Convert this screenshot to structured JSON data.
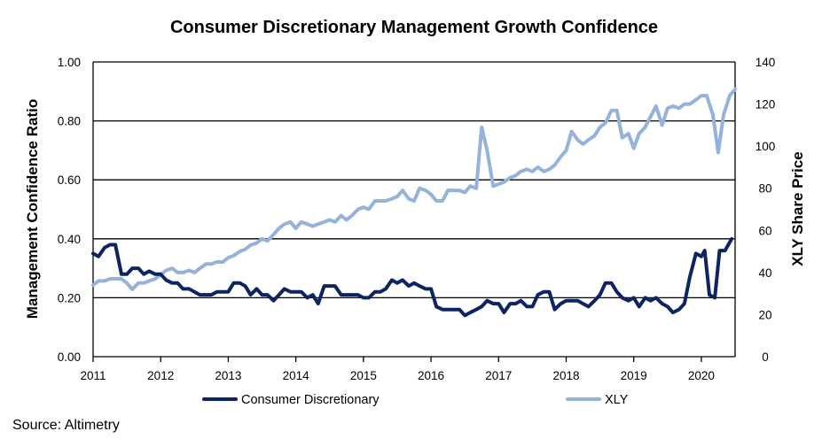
{
  "source": "Source: Altimetry",
  "chart_data": {
    "type": "line",
    "title": "Consumer Discretionary Management Growth Confidence",
    "ylabel": "Management Confidence Ratio",
    "y2label": "XLY Share Price",
    "xlim": [
      2011,
      2020.5
    ],
    "ylim": [
      0,
      1.0
    ],
    "y2lim": [
      0,
      140
    ],
    "x_ticks": [
      "2011",
      "2012",
      "2013",
      "2014",
      "2015",
      "2016",
      "2017",
      "2018",
      "2019",
      "2020"
    ],
    "y_ticks": [
      "0.00",
      "0.20",
      "0.40",
      "0.60",
      "0.80",
      "1.00"
    ],
    "y2_ticks": [
      "0",
      "20",
      "40",
      "60",
      "80",
      "100",
      "120",
      "140"
    ],
    "grid": "horizontal",
    "legend_position": "bottom",
    "series": [
      {
        "name": "Consumer Discretionary",
        "axis": "left",
        "color": "#0c2461",
        "points": [
          [
            2011.0,
            0.35
          ],
          [
            2011.08,
            0.34
          ],
          [
            2011.17,
            0.37
          ],
          [
            2011.25,
            0.38
          ],
          [
            2011.33,
            0.38
          ],
          [
            2011.42,
            0.28
          ],
          [
            2011.5,
            0.28
          ],
          [
            2011.58,
            0.3
          ],
          [
            2011.67,
            0.3
          ],
          [
            2011.75,
            0.28
          ],
          [
            2011.83,
            0.29
          ],
          [
            2011.92,
            0.28
          ],
          [
            2012.0,
            0.28
          ],
          [
            2012.08,
            0.26
          ],
          [
            2012.17,
            0.25
          ],
          [
            2012.25,
            0.25
          ],
          [
            2012.33,
            0.23
          ],
          [
            2012.42,
            0.23
          ],
          [
            2012.5,
            0.22
          ],
          [
            2012.58,
            0.21
          ],
          [
            2012.67,
            0.21
          ],
          [
            2012.75,
            0.21
          ],
          [
            2012.83,
            0.22
          ],
          [
            2012.92,
            0.22
          ],
          [
            2013.0,
            0.22
          ],
          [
            2013.08,
            0.25
          ],
          [
            2013.17,
            0.25
          ],
          [
            2013.25,
            0.24
          ],
          [
            2013.33,
            0.21
          ],
          [
            2013.42,
            0.23
          ],
          [
            2013.5,
            0.21
          ],
          [
            2013.58,
            0.21
          ],
          [
            2013.67,
            0.19
          ],
          [
            2013.75,
            0.21
          ],
          [
            2013.83,
            0.23
          ],
          [
            2013.92,
            0.22
          ],
          [
            2014.0,
            0.22
          ],
          [
            2014.08,
            0.22
          ],
          [
            2014.17,
            0.2
          ],
          [
            2014.25,
            0.21
          ],
          [
            2014.33,
            0.18
          ],
          [
            2014.42,
            0.24
          ],
          [
            2014.5,
            0.24
          ],
          [
            2014.58,
            0.24
          ],
          [
            2014.67,
            0.21
          ],
          [
            2014.75,
            0.21
          ],
          [
            2014.83,
            0.21
          ],
          [
            2014.92,
            0.21
          ],
          [
            2015.0,
            0.2
          ],
          [
            2015.08,
            0.2
          ],
          [
            2015.17,
            0.22
          ],
          [
            2015.25,
            0.22
          ],
          [
            2015.33,
            0.23
          ],
          [
            2015.42,
            0.26
          ],
          [
            2015.5,
            0.25
          ],
          [
            2015.58,
            0.26
          ],
          [
            2015.67,
            0.24
          ],
          [
            2015.75,
            0.25
          ],
          [
            2015.83,
            0.24
          ],
          [
            2015.92,
            0.23
          ],
          [
            2016.0,
            0.23
          ],
          [
            2016.08,
            0.17
          ],
          [
            2016.17,
            0.16
          ],
          [
            2016.25,
            0.16
          ],
          [
            2016.33,
            0.16
          ],
          [
            2016.42,
            0.16
          ],
          [
            2016.5,
            0.14
          ],
          [
            2016.58,
            0.15
          ],
          [
            2016.67,
            0.16
          ],
          [
            2016.75,
            0.17
          ],
          [
            2016.83,
            0.19
          ],
          [
            2016.92,
            0.18
          ],
          [
            2017.0,
            0.18
          ],
          [
            2017.08,
            0.15
          ],
          [
            2017.17,
            0.18
          ],
          [
            2017.25,
            0.18
          ],
          [
            2017.33,
            0.19
          ],
          [
            2017.42,
            0.17
          ],
          [
            2017.5,
            0.17
          ],
          [
            2017.58,
            0.21
          ],
          [
            2017.67,
            0.22
          ],
          [
            2017.75,
            0.22
          ],
          [
            2017.83,
            0.16
          ],
          [
            2017.92,
            0.18
          ],
          [
            2018.0,
            0.19
          ],
          [
            2018.08,
            0.19
          ],
          [
            2018.17,
            0.19
          ],
          [
            2018.25,
            0.18
          ],
          [
            2018.33,
            0.17
          ],
          [
            2018.42,
            0.19
          ],
          [
            2018.5,
            0.21
          ],
          [
            2018.58,
            0.25
          ],
          [
            2018.67,
            0.25
          ],
          [
            2018.75,
            0.22
          ],
          [
            2018.83,
            0.2
          ],
          [
            2018.92,
            0.19
          ],
          [
            2019.0,
            0.2
          ],
          [
            2019.08,
            0.17
          ],
          [
            2019.17,
            0.2
          ],
          [
            2019.25,
            0.19
          ],
          [
            2019.33,
            0.2
          ],
          [
            2019.42,
            0.18
          ],
          [
            2019.5,
            0.17
          ],
          [
            2019.58,
            0.15
          ],
          [
            2019.67,
            0.16
          ],
          [
            2019.75,
            0.18
          ],
          [
            2019.83,
            0.27
          ],
          [
            2019.92,
            0.35
          ],
          [
            2020.0,
            0.34
          ],
          [
            2020.05,
            0.36
          ],
          [
            2020.12,
            0.21
          ],
          [
            2020.2,
            0.2
          ],
          [
            2020.27,
            0.36
          ],
          [
            2020.35,
            0.36
          ],
          [
            2020.45,
            0.4
          ]
        ]
      },
      {
        "name": "XLY",
        "axis": "right",
        "color": "#94b3db",
        "points": [
          [
            2011.0,
            34
          ],
          [
            2011.08,
            36
          ],
          [
            2011.17,
            36
          ],
          [
            2011.25,
            37
          ],
          [
            2011.33,
            37
          ],
          [
            2011.42,
            37
          ],
          [
            2011.5,
            35
          ],
          [
            2011.58,
            32
          ],
          [
            2011.67,
            35
          ],
          [
            2011.75,
            35
          ],
          [
            2011.83,
            36
          ],
          [
            2011.92,
            37
          ],
          [
            2012.0,
            39
          ],
          [
            2012.08,
            41
          ],
          [
            2012.17,
            42
          ],
          [
            2012.25,
            40
          ],
          [
            2012.33,
            40
          ],
          [
            2012.42,
            41
          ],
          [
            2012.5,
            40
          ],
          [
            2012.58,
            42
          ],
          [
            2012.67,
            44
          ],
          [
            2012.75,
            44
          ],
          [
            2012.83,
            45
          ],
          [
            2012.92,
            45
          ],
          [
            2013.0,
            47
          ],
          [
            2013.08,
            48
          ],
          [
            2013.17,
            50
          ],
          [
            2013.25,
            51
          ],
          [
            2013.33,
            53
          ],
          [
            2013.42,
            54
          ],
          [
            2013.5,
            56
          ],
          [
            2013.58,
            55
          ],
          [
            2013.67,
            58
          ],
          [
            2013.75,
            61
          ],
          [
            2013.83,
            63
          ],
          [
            2013.92,
            64
          ],
          [
            2014.0,
            61
          ],
          [
            2014.08,
            64
          ],
          [
            2014.17,
            63
          ],
          [
            2014.25,
            62
          ],
          [
            2014.33,
            63
          ],
          [
            2014.42,
            64
          ],
          [
            2014.5,
            65
          ],
          [
            2014.58,
            64
          ],
          [
            2014.67,
            67
          ],
          [
            2014.75,
            65
          ],
          [
            2014.83,
            67
          ],
          [
            2014.92,
            70
          ],
          [
            2015.0,
            71
          ],
          [
            2015.08,
            70
          ],
          [
            2015.17,
            74
          ],
          [
            2015.25,
            74
          ],
          [
            2015.33,
            74
          ],
          [
            2015.42,
            75
          ],
          [
            2015.5,
            76
          ],
          [
            2015.58,
            79
          ],
          [
            2015.67,
            75
          ],
          [
            2015.75,
            74
          ],
          [
            2015.83,
            80
          ],
          [
            2015.92,
            79
          ],
          [
            2016.0,
            77
          ],
          [
            2016.08,
            74
          ],
          [
            2016.17,
            74
          ],
          [
            2016.25,
            79
          ],
          [
            2016.33,
            79
          ],
          [
            2016.42,
            79
          ],
          [
            2016.5,
            78
          ],
          [
            2016.58,
            81
          ],
          [
            2016.67,
            80
          ],
          [
            2016.75,
            109
          ],
          [
            2016.83,
            98
          ],
          [
            2016.92,
            81
          ],
          [
            2017.0,
            82
          ],
          [
            2017.08,
            83
          ],
          [
            2017.17,
            85
          ],
          [
            2017.25,
            86
          ],
          [
            2017.33,
            88
          ],
          [
            2017.42,
            89
          ],
          [
            2017.5,
            88
          ],
          [
            2017.58,
            90
          ],
          [
            2017.67,
            88
          ],
          [
            2017.75,
            89
          ],
          [
            2017.83,
            91
          ],
          [
            2017.92,
            95
          ],
          [
            2018.0,
            98
          ],
          [
            2018.08,
            107
          ],
          [
            2018.17,
            103
          ],
          [
            2018.25,
            101
          ],
          [
            2018.33,
            103
          ],
          [
            2018.42,
            105
          ],
          [
            2018.5,
            109
          ],
          [
            2018.58,
            111
          ],
          [
            2018.67,
            117
          ],
          [
            2018.75,
            117
          ],
          [
            2018.83,
            104
          ],
          [
            2018.92,
            106
          ],
          [
            2019.0,
            99
          ],
          [
            2019.08,
            106
          ],
          [
            2019.17,
            109
          ],
          [
            2019.25,
            114
          ],
          [
            2019.33,
            119
          ],
          [
            2019.42,
            110
          ],
          [
            2019.5,
            118
          ],
          [
            2019.58,
            119
          ],
          [
            2019.67,
            118
          ],
          [
            2019.75,
            120
          ],
          [
            2019.83,
            120
          ],
          [
            2019.92,
            122
          ],
          [
            2020.0,
            124
          ],
          [
            2020.08,
            124
          ],
          [
            2020.17,
            115
          ],
          [
            2020.25,
            97
          ],
          [
            2020.33,
            115
          ],
          [
            2020.42,
            124
          ],
          [
            2020.5,
            127
          ]
        ]
      }
    ]
  }
}
